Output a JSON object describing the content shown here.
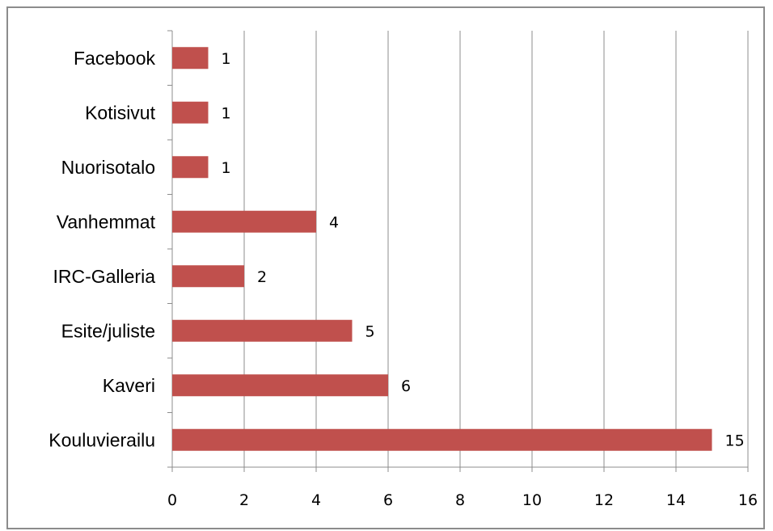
{
  "chart_data": {
    "type": "bar",
    "orientation": "horizontal",
    "categories": [
      "Facebook",
      "Kotisivut",
      "Nuorisotalo",
      "Vanhemmat",
      "IRC-Galleria",
      "Esite/juliste",
      "Kaveri",
      "Kouluvierailu"
    ],
    "values": [
      1,
      1,
      1,
      4,
      2,
      5,
      6,
      15
    ],
    "xlim": [
      0,
      16
    ],
    "xticks": [
      0,
      2,
      4,
      6,
      8,
      10,
      12,
      14,
      16
    ],
    "title": "",
    "xlabel": "",
    "ylabel": "",
    "grid": "vertical major gridlines",
    "legend": "none",
    "data_labels": true,
    "bar_color": "#c0504d",
    "gridline_color": "#8c8c8c",
    "border_color": "#8c8c8c"
  }
}
